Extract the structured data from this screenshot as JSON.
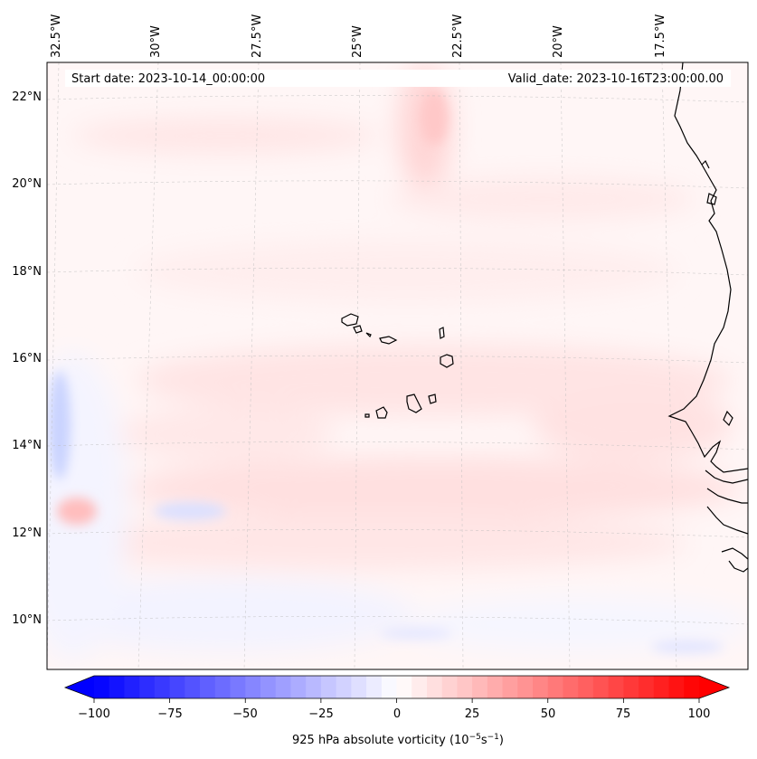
{
  "header": {
    "start_label": "Start date: 2023-10-14_00:00:00",
    "valid_label": "Valid_date: 2023-10-16T23:00:00.00"
  },
  "map": {
    "lon_labels": [
      "32.5°W",
      "30°W",
      "27.5°W",
      "25°W",
      "22.5°W",
      "20°W",
      "17.5°W"
    ],
    "lat_labels": [
      "22°N",
      "20°N",
      "18°N",
      "16°N",
      "14°N",
      "12°N",
      "10°N"
    ],
    "gridlines": true
  },
  "colorbar": {
    "ticks": [
      "−100",
      "−75",
      "−50",
      "−25",
      "0",
      "25",
      "50",
      "75",
      "100"
    ],
    "label": "925 hPa absolute vorticity (10",
    "label_exp1": "−5",
    "label_mid": "s",
    "label_exp2": "−1",
    "label_end": ")",
    "range": [
      -100,
      100
    ],
    "colormap": "bwr",
    "negative_color": "#0000ff",
    "zero_color": "#ffffff",
    "positive_color": "#ff0000"
  }
}
